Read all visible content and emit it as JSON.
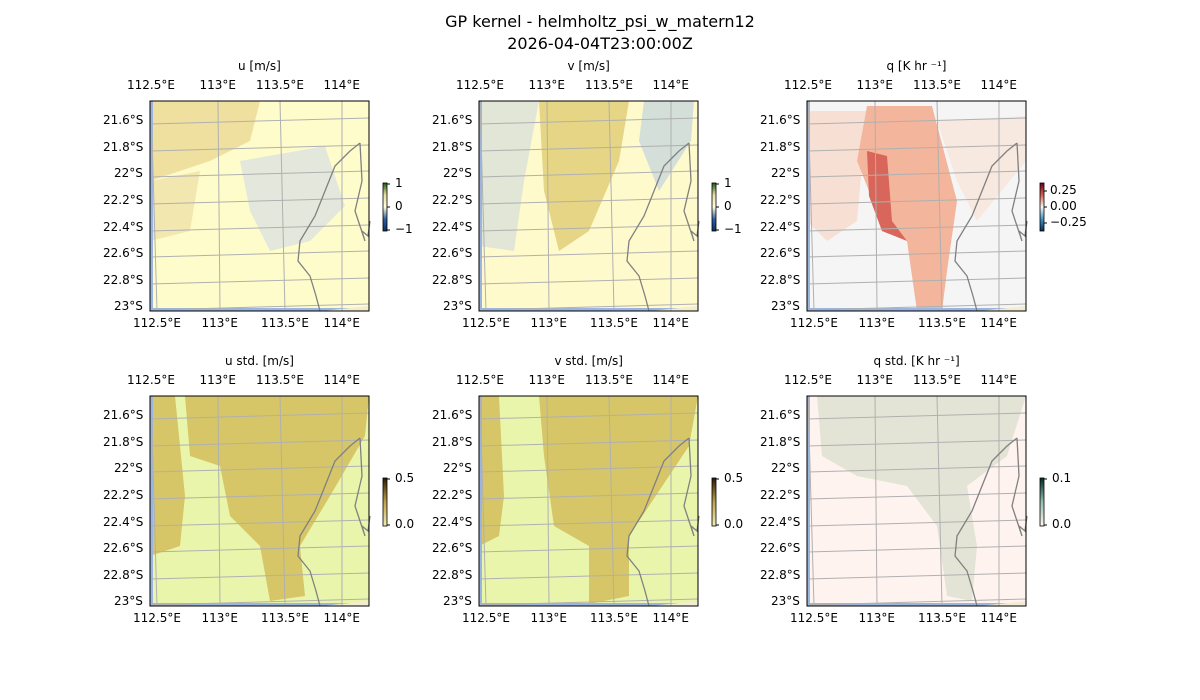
{
  "chart_title": "GP kernel - helmholtz_psi_w_matern12",
  "chart_subtitle": "2026-04-04T23:00:00Z",
  "chart_data": [
    {
      "type": "heatmap",
      "title": "u [m/s]",
      "x_ticks": [
        "112.5°E",
        "113°E",
        "113.5°E",
        "114°E"
      ],
      "y_ticks": [
        "21.6°S",
        "21.8°S",
        "22°S",
        "22.2°S",
        "22.4°S",
        "22.6°S",
        "22.8°S",
        "23°S"
      ],
      "colorbar_ticks": [
        "1",
        "0",
        "−1"
      ],
      "colorbar_range": [
        -1,
        1
      ],
      "colormap": "diverging"
    },
    {
      "type": "heatmap",
      "title": "v [m/s]",
      "x_ticks": [
        "112.5°E",
        "113°E",
        "113.5°E",
        "114°E"
      ],
      "y_ticks": [
        "21.6°S",
        "21.8°S",
        "22°S",
        "22.2°S",
        "22.4°S",
        "22.6°S",
        "22.8°S",
        "23°S"
      ],
      "colorbar_ticks": [
        "1",
        "0",
        "−1"
      ],
      "colorbar_range": [
        -1,
        1
      ],
      "colormap": "diverging"
    },
    {
      "type": "heatmap",
      "title": "q [K hr ⁻¹]",
      "x_ticks": [
        "112.5°E",
        "113°E",
        "113.5°E",
        "114°E"
      ],
      "y_ticks": [
        "21.6°S",
        "21.8°S",
        "22°S",
        "22.2°S",
        "22.4°S",
        "22.6°S",
        "22.8°S",
        "23°S"
      ],
      "colorbar_ticks": [
        "0.25",
        "0.00",
        "−0.25"
      ],
      "colorbar_range": [
        -0.35,
        0.35
      ],
      "colormap": "RdBu_r"
    },
    {
      "type": "heatmap",
      "title": "u std. [m/s]",
      "x_ticks": [
        "112.5°E",
        "113°E",
        "113.5°E",
        "114°E"
      ],
      "y_ticks": [
        "21.6°S",
        "21.8°S",
        "22°S",
        "22.2°S",
        "22.4°S",
        "22.6°S",
        "22.8°S",
        "23°S"
      ],
      "colorbar_ticks": [
        "0.5",
        "0.0"
      ],
      "colorbar_range": [
        0,
        0.5
      ],
      "colormap": "sequential"
    },
    {
      "type": "heatmap",
      "title": "v std. [m/s]",
      "x_ticks": [
        "112.5°E",
        "113°E",
        "113.5°E",
        "114°E"
      ],
      "y_ticks": [
        "21.6°S",
        "21.8°S",
        "22°S",
        "22.2°S",
        "22.4°S",
        "22.6°S",
        "22.8°S",
        "23°S"
      ],
      "colorbar_ticks": [
        "0.5",
        "0.0"
      ],
      "colorbar_range": [
        0,
        0.5
      ],
      "colormap": "sequential"
    },
    {
      "type": "heatmap",
      "title": "q std. [K hr ⁻¹]",
      "x_ticks": [
        "112.5°E",
        "113°E",
        "113.5°E",
        "114°E"
      ],
      "y_ticks": [
        "21.6°S",
        "21.8°S",
        "22°S",
        "22.2°S",
        "22.4°S",
        "22.6°S",
        "22.8°S",
        "23°S"
      ],
      "colorbar_ticks": [
        "0.1",
        "0.0"
      ],
      "colorbar_range": [
        0,
        0.1
      ],
      "colormap": "sequential"
    }
  ],
  "colors": {
    "ocean_edge": "#9ab5e0",
    "grid": "#b0b0b0",
    "coast": "#808080"
  }
}
